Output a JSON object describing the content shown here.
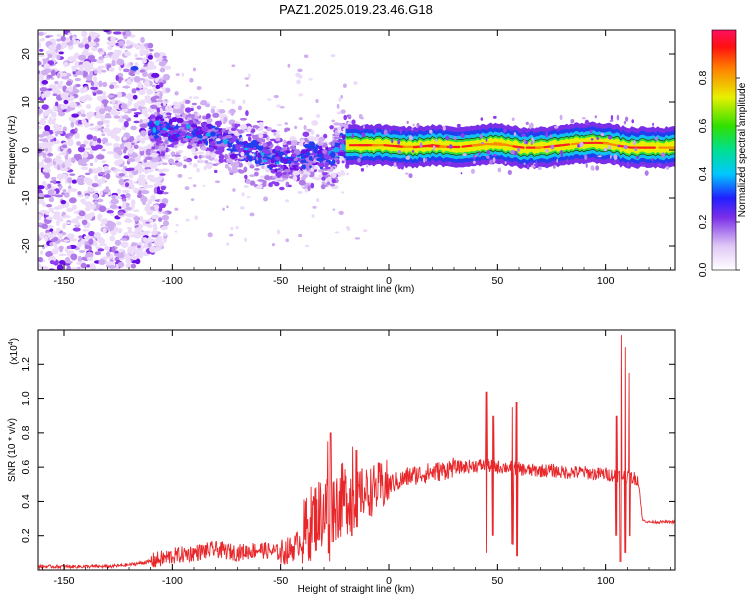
{
  "title": "PAZ1.2025.019.23.46.G18",
  "chart_data": [
    {
      "type": "heatmap",
      "xlabel": "Height of straight line (km)",
      "ylabel": "Frequency (Hz)",
      "xlim": [
        -162,
        132
      ],
      "ylim": [
        -25,
        25
      ],
      "xticks": [
        -150,
        -100,
        -50,
        0,
        50,
        100
      ],
      "yticks": [
        -20,
        -10,
        0,
        10,
        20
      ],
      "colorbar": {
        "label": "Normalized spectral amplitude",
        "range": [
          0,
          1
        ],
        "ticks": [
          "0.0",
          "0.2",
          "0.4",
          "0.6",
          "0.8"
        ]
      },
      "ridge": [
        [
          -105,
          4.5
        ],
        [
          -95,
          4
        ],
        [
          -85,
          3
        ],
        [
          -75,
          1.5
        ],
        [
          -65,
          0
        ],
        [
          -55,
          -1.5
        ],
        [
          -45,
          -2.5
        ],
        [
          -35,
          -1
        ],
        [
          -28,
          -2
        ],
        [
          -22,
          1
        ],
        [
          -10,
          1
        ],
        [
          0,
          1
        ],
        [
          10,
          0.5
        ],
        [
          20,
          1
        ],
        [
          30,
          0.5
        ],
        [
          40,
          1
        ],
        [
          50,
          1.5
        ],
        [
          60,
          0.5
        ],
        [
          70,
          0.5
        ],
        [
          80,
          1
        ],
        [
          90,
          1.5
        ],
        [
          100,
          1.5
        ],
        [
          110,
          0.5
        ],
        [
          132,
          0.5
        ]
      ]
    },
    {
      "type": "line",
      "xlabel": "Height of straight line (km)",
      "ylabel": "SNR (10 * v/v)",
      "yscale_label": "(x10",
      "yscale_exp": "4",
      "xlim": [
        -162,
        132
      ],
      "ylim": [
        0,
        1.4
      ],
      "xticks": [
        -150,
        -100,
        -50,
        0,
        50,
        100
      ],
      "yticks": [
        "0.2",
        "0.4",
        "0.6",
        "0.8",
        "1.0",
        "1.2"
      ],
      "series": [
        {
          "color": "#e8272b",
          "x": [
            -162,
            -150,
            -140,
            -130,
            -120,
            -110,
            -100,
            -90,
            -80,
            -70,
            -60,
            -50,
            -45,
            -40,
            -35,
            -30,
            -25,
            -20,
            -15,
            -10,
            -5,
            0,
            5,
            10,
            15,
            20,
            25,
            30,
            35,
            40,
            45,
            50,
            55,
            60,
            65,
            70,
            75,
            80,
            85,
            90,
            95,
            100,
            105,
            108,
            110,
            112,
            115,
            117,
            120,
            125,
            132
          ],
          "y": [
            0.02,
            0.02,
            0.02,
            0.02,
            0.03,
            0.05,
            0.08,
            0.1,
            0.12,
            0.1,
            0.12,
            0.1,
            0.12,
            0.18,
            0.3,
            0.35,
            0.38,
            0.42,
            0.45,
            0.45,
            0.48,
            0.5,
            0.52,
            0.55,
            0.56,
            0.57,
            0.58,
            0.6,
            0.6,
            0.61,
            0.61,
            0.6,
            0.6,
            0.59,
            0.58,
            0.58,
            0.58,
            0.57,
            0.57,
            0.57,
            0.56,
            0.56,
            0.55,
            0.55,
            0.54,
            0.54,
            0.53,
            0.29,
            0.28,
            0.28,
            0.28
          ]
        }
      ],
      "spikes": [
        [
          45,
          1.04,
          0.1
        ],
        [
          48,
          0.9,
          0.2
        ],
        [
          57,
          0.95,
          0.15
        ],
        [
          59,
          0.98,
          0.08
        ],
        [
          -28,
          0.75,
          0.1
        ],
        [
          -27,
          0.8,
          0.05
        ],
        [
          -17,
          0.72,
          0.2
        ],
        [
          -15,
          0.7,
          0.25
        ],
        [
          107,
          1.37,
          0.05
        ],
        [
          109,
          1.3,
          0.1
        ],
        [
          111,
          1.15,
          0.2
        ],
        [
          105,
          0.9,
          0.2
        ]
      ]
    }
  ]
}
